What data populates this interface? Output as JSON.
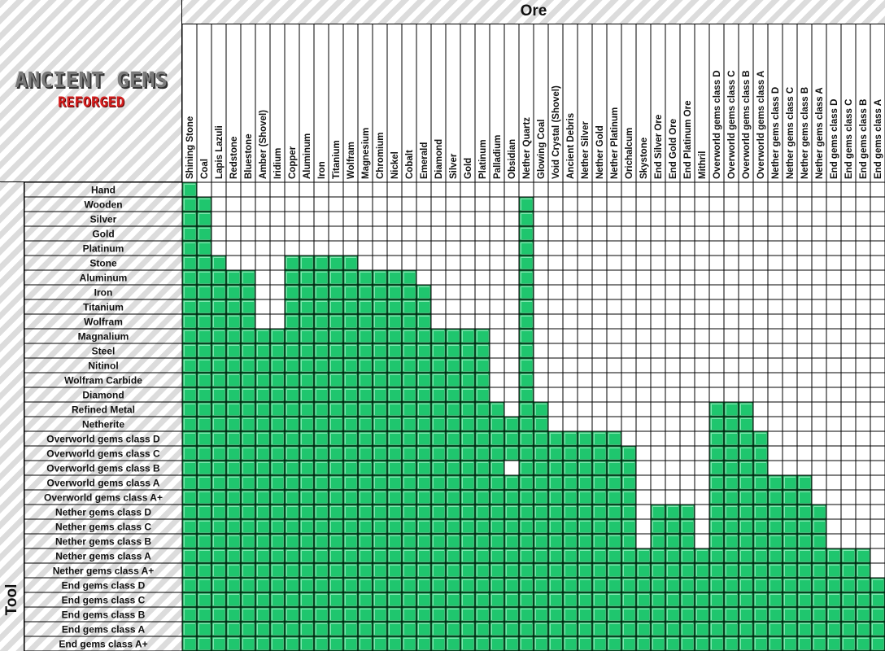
{
  "chart_data": {
    "type": "table",
    "xlabel": "Ore",
    "ylabel": "Tool",
    "logo": {
      "line1": "ANCIENT GEMS",
      "line2": "REFORGED"
    },
    "ores": [
      "Shining Stone",
      "Coal",
      "Lapis Lazuli",
      "Redstone",
      "Bluestone",
      "Amber (Shovel)",
      "Iridium",
      "Copper",
      "Aluminum",
      "Iron",
      "Titanium",
      "Wolfram",
      "Magnesium",
      "Chromium",
      "Nickel",
      "Cobalt",
      "Emerald",
      "Diamond",
      "Silver",
      "Gold",
      "Platinum",
      "Palladium",
      "Obsidian",
      "Nether Quartz",
      "Glowing Coal",
      "Void Crystal (Shovel)",
      "Ancient Debris",
      "Nether Silver",
      "Nether Gold",
      "Nether Platinum",
      "Orichalcum",
      "Skystone",
      "End Silver Ore",
      "End Gold Ore",
      "End Platinum Ore",
      "Mithril",
      "Overworld gems class D",
      "Overworld gems class C",
      "Overworld gems class B",
      "Overworld gems class A",
      "Nether gems class D",
      "Nether gems class C",
      "Nether gems class B",
      "Nether gems class A",
      "End gems class D",
      "End gems class C",
      "End gems class B",
      "End gems class A"
    ],
    "tools": [
      {
        "name": "Hand",
        "mineable": [
          0
        ]
      },
      {
        "name": "Wooden",
        "mineable": [
          0,
          1,
          23
        ]
      },
      {
        "name": "Silver",
        "mineable": [
          0,
          1,
          23
        ]
      },
      {
        "name": "Gold",
        "mineable": [
          0,
          1,
          23
        ]
      },
      {
        "name": "Platinum",
        "mineable": [
          0,
          1,
          23
        ]
      },
      {
        "name": "Stone",
        "mineable": [
          0,
          1,
          2,
          7,
          8,
          9,
          10,
          11,
          23
        ]
      },
      {
        "name": "Aluminum",
        "mineable": [
          0,
          1,
          2,
          3,
          4,
          7,
          8,
          9,
          10,
          11,
          12,
          13,
          14,
          15,
          23
        ]
      },
      {
        "name": "Iron",
        "mineable": [
          0,
          1,
          2,
          3,
          4,
          7,
          8,
          9,
          10,
          11,
          12,
          13,
          14,
          15,
          16,
          23
        ]
      },
      {
        "name": "Titanium",
        "mineable": [
          0,
          1,
          2,
          3,
          4,
          7,
          8,
          9,
          10,
          11,
          12,
          13,
          14,
          15,
          16,
          23
        ]
      },
      {
        "name": "Wolfram",
        "mineable": [
          0,
          1,
          2,
          3,
          4,
          7,
          8,
          9,
          10,
          11,
          12,
          13,
          14,
          15,
          16,
          23
        ]
      },
      {
        "name": "Magnalium",
        "mineable": [
          0,
          1,
          2,
          3,
          4,
          5,
          6,
          7,
          8,
          9,
          10,
          11,
          12,
          13,
          14,
          15,
          16,
          17,
          18,
          19,
          20,
          23
        ]
      },
      {
        "name": "Steel",
        "mineable": [
          0,
          1,
          2,
          3,
          4,
          5,
          6,
          7,
          8,
          9,
          10,
          11,
          12,
          13,
          14,
          15,
          16,
          17,
          18,
          19,
          20,
          23
        ]
      },
      {
        "name": "Nitinol",
        "mineable": [
          0,
          1,
          2,
          3,
          4,
          5,
          6,
          7,
          8,
          9,
          10,
          11,
          12,
          13,
          14,
          15,
          16,
          17,
          18,
          19,
          20,
          23
        ]
      },
      {
        "name": "Wolfram Carbide",
        "mineable": [
          0,
          1,
          2,
          3,
          4,
          5,
          6,
          7,
          8,
          9,
          10,
          11,
          12,
          13,
          14,
          15,
          16,
          17,
          18,
          19,
          20,
          23
        ]
      },
      {
        "name": "Diamond",
        "mineable": [
          0,
          1,
          2,
          3,
          4,
          5,
          6,
          7,
          8,
          9,
          10,
          11,
          12,
          13,
          14,
          15,
          16,
          17,
          18,
          19,
          20,
          23
        ]
      },
      {
        "name": "Refined Metal",
        "mineable": [
          0,
          1,
          2,
          3,
          4,
          5,
          6,
          7,
          8,
          9,
          10,
          11,
          12,
          13,
          14,
          15,
          16,
          17,
          18,
          19,
          20,
          21,
          23,
          24,
          36,
          37,
          38
        ]
      },
      {
        "name": "Netherite",
        "mineable": [
          0,
          1,
          2,
          3,
          4,
          5,
          6,
          7,
          8,
          9,
          10,
          11,
          12,
          13,
          14,
          15,
          16,
          17,
          18,
          19,
          20,
          21,
          22,
          23,
          24,
          36,
          37,
          38
        ]
      },
      {
        "name": "Overworld gems class D",
        "mineable": [
          0,
          1,
          2,
          3,
          4,
          5,
          6,
          7,
          8,
          9,
          10,
          11,
          12,
          13,
          14,
          15,
          16,
          17,
          18,
          19,
          20,
          21,
          22,
          23,
          24,
          25,
          26,
          27,
          28,
          29,
          36,
          37,
          38,
          39
        ]
      },
      {
        "name": "Overworld gems class C",
        "mineable": [
          0,
          1,
          2,
          3,
          4,
          5,
          6,
          7,
          8,
          9,
          10,
          11,
          12,
          13,
          14,
          15,
          16,
          17,
          18,
          19,
          20,
          21,
          22,
          23,
          24,
          25,
          26,
          27,
          28,
          29,
          30,
          36,
          37,
          38,
          39
        ]
      },
      {
        "name": "Overworld gems class B",
        "mineable": [
          0,
          1,
          2,
          3,
          4,
          5,
          6,
          7,
          8,
          9,
          10,
          11,
          12,
          13,
          14,
          15,
          16,
          17,
          18,
          19,
          20,
          21,
          23,
          24,
          25,
          26,
          27,
          28,
          29,
          30,
          36,
          37,
          38,
          39
        ]
      },
      {
        "name": "Overworld gems class A",
        "mineable": [
          0,
          1,
          2,
          3,
          4,
          5,
          6,
          7,
          8,
          9,
          10,
          11,
          12,
          13,
          14,
          15,
          16,
          17,
          18,
          19,
          20,
          21,
          22,
          23,
          24,
          25,
          26,
          27,
          28,
          29,
          30,
          36,
          37,
          38,
          39,
          40,
          41,
          42
        ]
      },
      {
        "name": "Overworld gems class A+",
        "mineable": [
          0,
          1,
          2,
          3,
          4,
          5,
          6,
          7,
          8,
          9,
          10,
          11,
          12,
          13,
          14,
          15,
          16,
          17,
          18,
          19,
          20,
          21,
          22,
          23,
          24,
          25,
          26,
          27,
          28,
          29,
          30,
          36,
          37,
          38,
          39,
          40,
          41,
          42
        ]
      },
      {
        "name": "Nether gems class D",
        "mineable": [
          0,
          1,
          2,
          3,
          4,
          5,
          6,
          7,
          8,
          9,
          10,
          11,
          12,
          13,
          14,
          15,
          16,
          17,
          18,
          19,
          20,
          21,
          22,
          23,
          24,
          25,
          26,
          27,
          28,
          29,
          30,
          32,
          33,
          34,
          36,
          37,
          38,
          39,
          40,
          41,
          42,
          43
        ]
      },
      {
        "name": "Nether gems class C",
        "mineable": [
          0,
          1,
          2,
          3,
          4,
          5,
          6,
          7,
          8,
          9,
          10,
          11,
          12,
          13,
          14,
          15,
          16,
          17,
          18,
          19,
          20,
          21,
          22,
          23,
          24,
          25,
          26,
          27,
          28,
          29,
          30,
          32,
          33,
          34,
          36,
          37,
          38,
          39,
          40,
          41,
          42,
          43
        ]
      },
      {
        "name": "Nether gems class B",
        "mineable": [
          0,
          1,
          2,
          3,
          4,
          5,
          6,
          7,
          8,
          9,
          10,
          11,
          12,
          13,
          14,
          15,
          16,
          17,
          18,
          19,
          20,
          21,
          22,
          23,
          24,
          25,
          26,
          27,
          28,
          29,
          30,
          32,
          33,
          34,
          36,
          37,
          38,
          39,
          40,
          41,
          42,
          43
        ]
      },
      {
        "name": "Nether gems class A",
        "mineable": [
          0,
          1,
          2,
          3,
          4,
          5,
          6,
          7,
          8,
          9,
          10,
          11,
          12,
          13,
          14,
          15,
          16,
          17,
          18,
          19,
          20,
          21,
          22,
          23,
          24,
          25,
          26,
          27,
          28,
          29,
          30,
          31,
          32,
          33,
          34,
          35,
          36,
          37,
          38,
          39,
          40,
          41,
          42,
          43,
          44,
          45,
          46
        ]
      },
      {
        "name": "Nether gems class A+",
        "mineable": [
          0,
          1,
          2,
          3,
          4,
          5,
          6,
          7,
          8,
          9,
          10,
          11,
          12,
          13,
          14,
          15,
          16,
          17,
          18,
          19,
          20,
          21,
          22,
          23,
          24,
          25,
          26,
          27,
          28,
          29,
          30,
          31,
          32,
          33,
          34,
          35,
          36,
          37,
          38,
          39,
          40,
          41,
          42,
          43,
          44,
          45,
          46
        ]
      },
      {
        "name": "End gems class D",
        "mineable": [
          0,
          1,
          2,
          3,
          4,
          5,
          6,
          7,
          8,
          9,
          10,
          11,
          12,
          13,
          14,
          15,
          16,
          17,
          18,
          19,
          20,
          21,
          22,
          23,
          24,
          25,
          26,
          27,
          28,
          29,
          30,
          31,
          32,
          33,
          34,
          35,
          36,
          37,
          38,
          39,
          40,
          41,
          42,
          43,
          44,
          45,
          46,
          47
        ]
      },
      {
        "name": "End gems class C",
        "mineable": [
          0,
          1,
          2,
          3,
          4,
          5,
          6,
          7,
          8,
          9,
          10,
          11,
          12,
          13,
          14,
          15,
          16,
          17,
          18,
          19,
          20,
          21,
          22,
          23,
          24,
          25,
          26,
          27,
          28,
          29,
          30,
          31,
          32,
          33,
          34,
          35,
          36,
          37,
          38,
          39,
          40,
          41,
          42,
          43,
          44,
          45,
          46,
          47
        ]
      },
      {
        "name": "End gems class B",
        "mineable": [
          0,
          1,
          2,
          3,
          4,
          5,
          6,
          7,
          8,
          9,
          10,
          11,
          12,
          13,
          14,
          15,
          16,
          17,
          18,
          19,
          20,
          21,
          22,
          23,
          24,
          25,
          26,
          27,
          28,
          29,
          30,
          31,
          32,
          33,
          34,
          35,
          36,
          37,
          38,
          39,
          40,
          41,
          42,
          43,
          44,
          45,
          46,
          47
        ]
      },
      {
        "name": "End gems class A",
        "mineable": [
          0,
          1,
          2,
          3,
          4,
          5,
          6,
          7,
          8,
          9,
          10,
          11,
          12,
          13,
          14,
          15,
          16,
          17,
          18,
          19,
          20,
          21,
          22,
          23,
          24,
          25,
          26,
          27,
          28,
          29,
          30,
          31,
          32,
          33,
          34,
          35,
          36,
          37,
          38,
          39,
          40,
          41,
          42,
          43,
          44,
          45,
          46,
          47
        ]
      },
      {
        "name": "End gems class A+",
        "mineable": [
          0,
          1,
          2,
          3,
          4,
          5,
          6,
          7,
          8,
          9,
          10,
          11,
          12,
          13,
          14,
          15,
          16,
          17,
          18,
          19,
          20,
          21,
          22,
          23,
          24,
          25,
          26,
          27,
          28,
          29,
          30,
          31,
          32,
          33,
          34,
          35,
          36,
          37,
          38,
          39,
          40,
          41,
          42,
          43,
          44,
          45,
          46,
          47
        ]
      }
    ],
    "colors": {
      "filled": "#1fc66e",
      "filled_light": "#7de8ae",
      "filled_dark": "#0e8a45",
      "stripe": "#dcdcdc",
      "grid": "#000000"
    }
  }
}
